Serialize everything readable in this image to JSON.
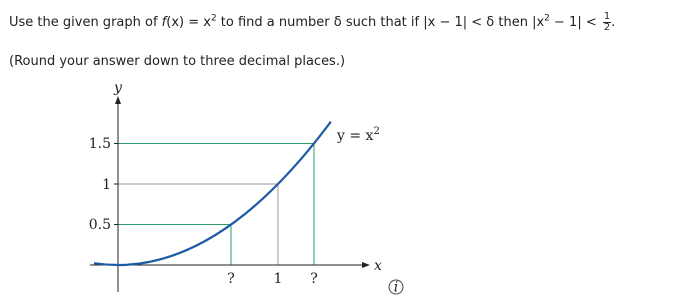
{
  "question": {
    "parts": [
      "Use the given graph of ",
      "f",
      "(x) = x",
      "2",
      " to find a number δ such that if |x − 1| < δ then |x",
      "2",
      " − 1| < "
    ],
    "fraction": {
      "numerator": "1",
      "denominator": "2"
    },
    "end": "."
  },
  "instruction": "(Round your answer down to three decimal places.)",
  "figure": {
    "y_axis": "y",
    "x_axis": "x",
    "y_labels": [
      "1.5",
      "1",
      "0.5"
    ],
    "x_labels": [
      "?",
      "1",
      "?"
    ],
    "curve_label": {
      "text": "y = x",
      "power": "2"
    },
    "info": "i"
  }
}
